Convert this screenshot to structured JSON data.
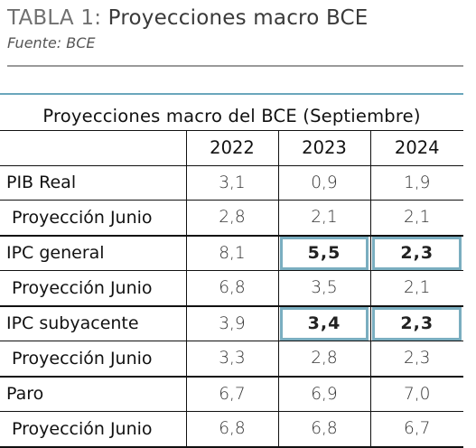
{
  "header": {
    "title_prefix": "TABLA 1: ",
    "title_main": "Proyecciones macro BCE",
    "source": "Fuente: BCE"
  },
  "table": {
    "caption": "Proyecciones macro del BCE (Septiembre)",
    "years": [
      "2022",
      "2023",
      "2024"
    ],
    "rows": [
      {
        "label": "PIB Real",
        "values": [
          "3,1",
          "0,9",
          "1,9"
        ],
        "highlight": [
          false,
          false,
          false
        ]
      },
      {
        "label": "Proyección Junio",
        "values": [
          "2,8",
          "2,1",
          "2,1"
        ],
        "highlight": [
          false,
          false,
          false
        ]
      },
      {
        "label": "IPC general",
        "values": [
          "8,1",
          "5,5",
          "2,3"
        ],
        "highlight": [
          false,
          true,
          true
        ]
      },
      {
        "label": "Proyección Junio",
        "values": [
          "6,8",
          "3,5",
          "2,1"
        ],
        "highlight": [
          false,
          false,
          false
        ]
      },
      {
        "label": "IPC subyacente",
        "values": [
          "3,9",
          "3,4",
          "2,3"
        ],
        "highlight": [
          false,
          true,
          true
        ]
      },
      {
        "label": "Proyección Junio",
        "values": [
          "3,3",
          "2,8",
          "2,3"
        ],
        "highlight": [
          false,
          false,
          false
        ]
      },
      {
        "label": "Paro",
        "values": [
          "6,7",
          "6,9",
          "7,0"
        ],
        "highlight": [
          false,
          false,
          false
        ]
      },
      {
        "label": "Proyección Junio",
        "values": [
          "6,8",
          "6,8",
          "6,7"
        ],
        "highlight": [
          false,
          false,
          false
        ]
      }
    ]
  },
  "colors": {
    "highlight_box": "#7aaec0",
    "top_rule": "#6aa6bc",
    "header_rule": "#9a9a9a"
  }
}
